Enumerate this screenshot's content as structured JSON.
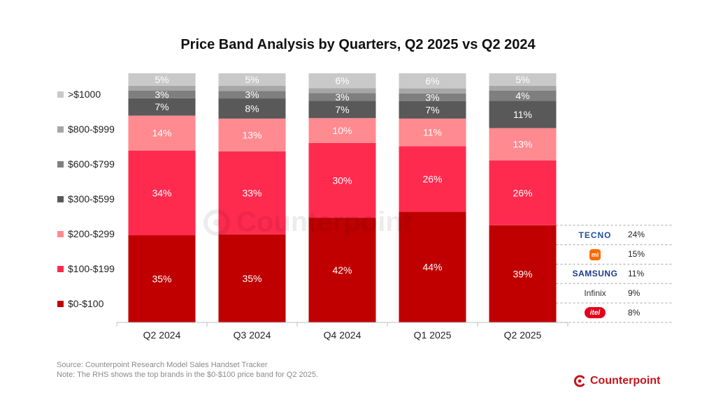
{
  "chart_data": {
    "type": "bar",
    "stacked": true,
    "normalized": true,
    "title": "Price Band Analysis by Quarters, Q2 2025 vs Q2 2024",
    "categories": [
      "Q2 2024",
      "Q3 2024",
      "Q4 2024",
      "Q1 2025",
      "Q2 2025"
    ],
    "series": [
      {
        "name": "$0-$100",
        "color": "#c00000",
        "values": [
          35,
          35,
          42,
          44,
          39
        ],
        "labels": [
          "35%",
          "35%",
          "42%",
          "44%",
          "39%"
        ]
      },
      {
        "name": "$100-$199",
        "color": "#ff2b4f",
        "values": [
          34,
          33,
          30,
          26,
          26
        ],
        "labels": [
          "34%",
          "33%",
          "30%",
          "26%",
          "26%"
        ]
      },
      {
        "name": "$200-$299",
        "color": "#ff8a8f",
        "values": [
          14,
          13,
          10,
          11,
          13
        ],
        "labels": [
          "14%",
          "13%",
          "10%",
          "11%",
          "13%"
        ]
      },
      {
        "name": "$300-$599",
        "color": "#595959",
        "values": [
          7,
          8,
          7,
          7,
          11
        ],
        "labels": [
          "7%",
          "8%",
          "7%",
          "7%",
          "11%"
        ]
      },
      {
        "name": "$600-$799",
        "color": "#7f7f7f",
        "values": [
          3,
          3,
          3,
          3,
          4
        ],
        "labels": [
          "3%",
          "3%",
          "3%",
          "3%",
          "4%"
        ]
      },
      {
        "name": "$800-$999",
        "color": "#a6a6a6",
        "values": [
          2,
          2,
          2,
          2,
          2
        ],
        "labels": [
          "",
          "",
          "",
          "",
          ""
        ]
      },
      {
        "name": ">$1000",
        "color": "#c9c9c9",
        "values": [
          5,
          5,
          6,
          6,
          5
        ],
        "labels": [
          "5%",
          "5%",
          "6%",
          "6%",
          "5%"
        ]
      }
    ],
    "legend_position": "left",
    "grid": false,
    "rhs_breakdown": {
      "category": "Q2 2025",
      "band": "$0-$100",
      "brands": [
        {
          "brand": "TECNO",
          "icon": "tecno-logo-icon",
          "share": "24%"
        },
        {
          "brand": "mi",
          "icon": "xiaomi-logo-icon",
          "share": "15%"
        },
        {
          "brand": "SAMSUNG",
          "icon": "samsung-logo-icon",
          "share": "11%"
        },
        {
          "brand": "Infinix",
          "icon": "infinix-logo-icon",
          "share": "9%"
        },
        {
          "brand": "itel",
          "icon": "itel-logo-icon",
          "share": "8%"
        }
      ]
    }
  },
  "legend_order": [
    ">$1000",
    "$800-$999",
    "$600-$799",
    "$300-$599",
    "$200-$299",
    "$100-$199",
    "$0-$100"
  ],
  "footer": {
    "source": "Source: Counterpoint Research Model Sales Handset Tracker",
    "note": "Note: The RHS shows the top brands in the $0-$100 price band for Q2 2025."
  },
  "branding": {
    "name": "Counterpoint",
    "icon": "counterpoint-logo-icon",
    "color": "#c4161c",
    "watermark": "Counterpoint"
  }
}
